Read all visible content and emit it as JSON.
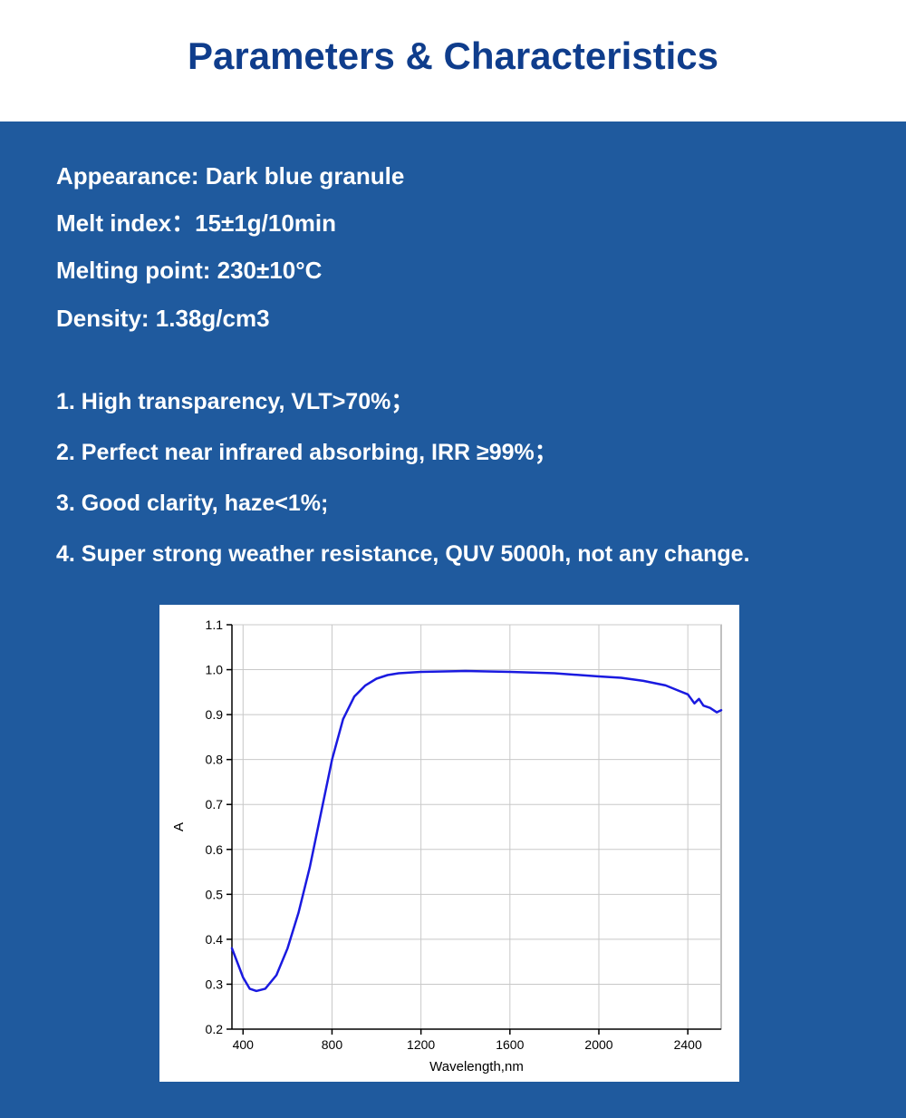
{
  "title": {
    "text": "Parameters & Characteristics",
    "color": "#0f3d8c"
  },
  "panel": {
    "background_color": "#1f5a9e",
    "text_color": "#ffffff"
  },
  "parameters": [
    "Appearance: Dark blue granule",
    "Melt index：15±1g/10min",
    "Melting point: 230±10°C",
    "Density: 1.38g/cm3"
  ],
  "characteristics": [
    "1. High transparency, VLT>70%；",
    "2. Perfect near infrared absorbing, IRR ≥99%；",
    "3. Good clarity, haze<1%;",
    "4. Super strong weather resistance, QUV 5000h, not any change."
  ],
  "chart": {
    "type": "line",
    "xlabel": "Wavelength,nm",
    "ylabel": "A",
    "xlim": [
      350,
      2550
    ],
    "ylim": [
      0.2,
      1.1
    ],
    "xticks": [
      400,
      800,
      1200,
      1600,
      2000,
      2400
    ],
    "yticks": [
      0.2,
      0.3,
      0.4,
      0.5,
      0.6,
      0.7,
      0.8,
      0.9,
      1.0,
      1.1
    ],
    "axis_color": "#000000",
    "grid_color": "#c8c8c8",
    "plot_border_color": "#808080",
    "background_color": "#ffffff",
    "line_color": "#1a1ae0",
    "line_width": 2.5,
    "tick_fontsize": 14,
    "label_fontsize": 15,
    "series": {
      "x": [
        350,
        400,
        430,
        460,
        500,
        550,
        600,
        650,
        700,
        750,
        800,
        850,
        900,
        950,
        1000,
        1050,
        1100,
        1200,
        1400,
        1600,
        1800,
        2000,
        2100,
        2200,
        2300,
        2350,
        2400,
        2430,
        2450,
        2470,
        2500,
        2530,
        2550
      ],
      "y": [
        0.38,
        0.315,
        0.29,
        0.285,
        0.29,
        0.32,
        0.38,
        0.46,
        0.56,
        0.68,
        0.8,
        0.89,
        0.94,
        0.965,
        0.98,
        0.988,
        0.992,
        0.995,
        0.997,
        0.995,
        0.992,
        0.985,
        0.982,
        0.975,
        0.965,
        0.955,
        0.945,
        0.925,
        0.935,
        0.92,
        0.915,
        0.905,
        0.91
      ]
    }
  }
}
